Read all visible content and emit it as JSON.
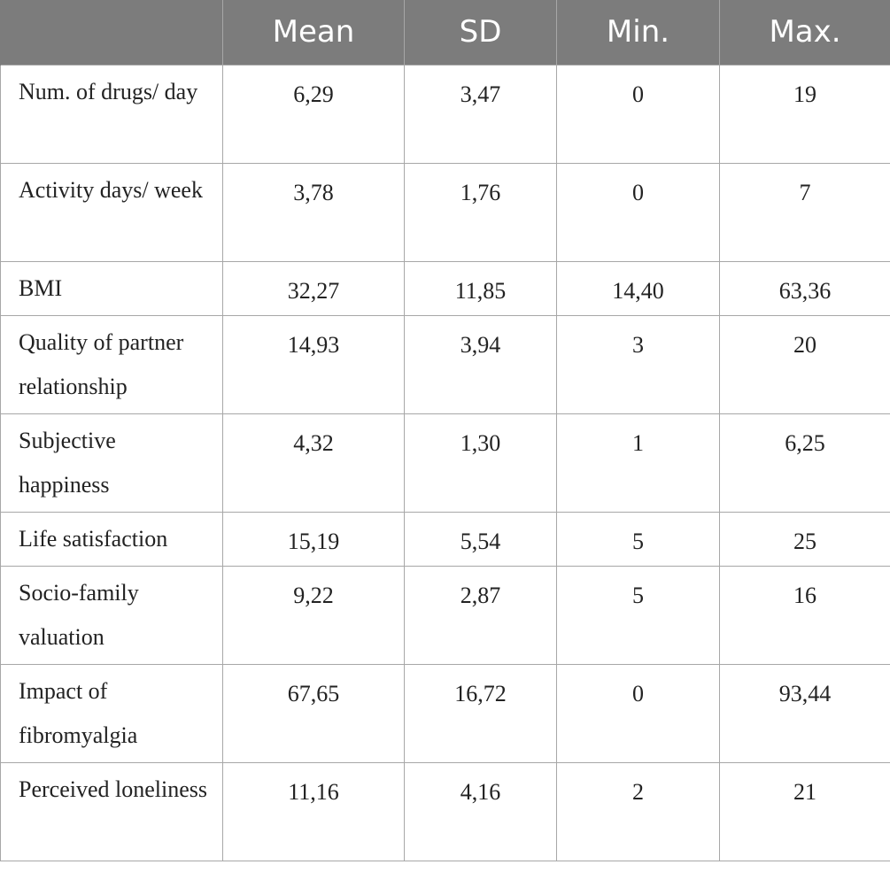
{
  "table": {
    "headers": [
      "",
      "Mean",
      "SD",
      "Min.",
      "Max."
    ],
    "rows": [
      {
        "label": "Num. of drugs/ day",
        "mean": "6,29",
        "sd": "3,47",
        "min": "0",
        "max": "19"
      },
      {
        "label": "Activity days/ week",
        "mean": "3,78",
        "sd": "1,76",
        "min": "0",
        "max": "7"
      },
      {
        "label": "BMI",
        "mean": "32,27",
        "sd": "11,85",
        "min": "14,40",
        "max": "63,36"
      },
      {
        "label": "Quality of partner relationship",
        "mean": "14,93",
        "sd": "3,94",
        "min": "3",
        "max": "20"
      },
      {
        "label": "Subjective happiness",
        "mean": "4,32",
        "sd": "1,30",
        "min": "1",
        "max": "6,25"
      },
      {
        "label": "Life satisfaction",
        "mean": "15,19",
        "sd": "5,54",
        "min": "5",
        "max": "25"
      },
      {
        "label": "Socio-family valuation",
        "mean": "9,22",
        "sd": "2,87",
        "min": "5",
        "max": "16"
      },
      {
        "label": "Impact of fibromyalgia",
        "mean": "67,65",
        "sd": "16,72",
        "min": "0",
        "max": "93,44"
      },
      {
        "label": "Perceived loneliness",
        "mean": "11,16",
        "sd": "4,16",
        "min": "2",
        "max": "21"
      }
    ]
  }
}
